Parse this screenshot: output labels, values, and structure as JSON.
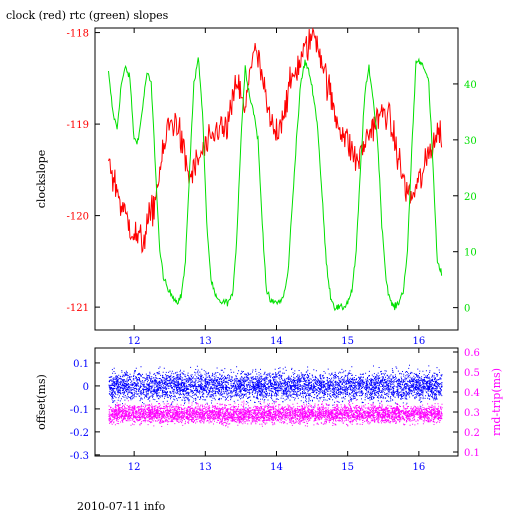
{
  "footer": "2010-07-11 info",
  "colors": {
    "red": "#ff0000",
    "green": "#00e000",
    "blue": "#0000ff",
    "magenta": "#ff00ff",
    "frame": "#000000",
    "background": "#ffffff"
  },
  "chart_data": [
    {
      "type": "line",
      "title": "clock (red) rtc (green) slopes",
      "xlabel": "",
      "ylabel": "clockslope",
      "y2label": "",
      "xlim": [
        11.45,
        16.55
      ],
      "ylim": [
        -121.25,
        -117.95
      ],
      "y2lim": [
        -4.0,
        50.0
      ],
      "x_ticks": [
        12,
        13,
        14,
        15,
        16
      ],
      "y_ticks": [
        -118,
        -119,
        -120,
        -121
      ],
      "y2_ticks": [
        0,
        10,
        20,
        30,
        40
      ],
      "series": [
        {
          "axis": "left",
          "color": "#ff0000",
          "x": [
            11.64,
            11.7,
            11.76,
            11.82,
            11.88,
            11.94,
            12.0,
            12.06,
            12.12,
            12.18,
            12.24,
            12.3,
            12.36,
            12.42,
            12.48,
            12.55,
            12.6,
            12.66,
            12.72,
            12.78,
            12.84,
            12.9,
            12.96,
            13.02,
            13.08,
            13.14,
            13.2,
            13.26,
            13.32,
            13.38,
            13.44,
            13.5,
            13.56,
            13.62,
            13.68,
            13.74,
            13.8,
            13.86,
            13.92,
            13.98,
            14.04,
            14.1,
            14.16,
            14.22,
            14.28,
            14.34,
            14.4,
            14.46,
            14.52,
            14.58,
            14.64,
            14.7,
            14.76,
            14.82,
            14.88,
            14.94,
            15.0,
            15.06,
            15.12,
            15.18,
            15.24,
            15.3,
            15.36,
            15.42,
            15.48,
            15.54,
            15.6,
            15.66,
            15.72,
            15.78,
            15.84,
            15.9,
            15.96,
            16.02,
            16.08,
            16.14,
            16.2,
            16.26,
            16.32
          ],
          "values": [
            -119.3,
            -119.6,
            -119.7,
            -119.9,
            -120.0,
            -120.1,
            -120.2,
            -120.25,
            -120.3,
            -120.1,
            -120.0,
            -119.8,
            -119.5,
            -119.3,
            -119.0,
            -119.0,
            -118.95,
            -119.2,
            -119.4,
            -119.6,
            -119.5,
            -119.4,
            -119.3,
            -119.25,
            -119.2,
            -119.1,
            -119.0,
            -119.1,
            -119.0,
            -118.8,
            -118.5,
            -118.7,
            -118.9,
            -118.4,
            -118.2,
            -118.3,
            -118.5,
            -118.8,
            -119.0,
            -119.1,
            -119.0,
            -118.85,
            -118.7,
            -118.5,
            -118.4,
            -118.3,
            -118.2,
            -118.1,
            -118.0,
            -118.1,
            -118.3,
            -118.5,
            -118.7,
            -118.9,
            -119.0,
            -119.1,
            -119.2,
            -119.3,
            -119.4,
            -119.35,
            -119.2,
            -119.1,
            -119.0,
            -118.95,
            -118.9,
            -118.85,
            -119.0,
            -119.2,
            -119.4,
            -119.6,
            -119.75,
            -119.8,
            -119.7,
            -119.6,
            -119.5,
            -119.3,
            -119.2,
            -119.1,
            -119.1
          ]
        },
        {
          "axis": "right",
          "color": "#00e000",
          "x": [
            11.64,
            11.7,
            11.76,
            11.82,
            11.88,
            11.94,
            12.0,
            12.06,
            12.12,
            12.18,
            12.24,
            12.3,
            12.36,
            12.42,
            12.48,
            12.55,
            12.6,
            12.66,
            12.72,
            12.78,
            12.84,
            12.9,
            12.96,
            13.02,
            13.08,
            13.14,
            13.2,
            13.26,
            13.32,
            13.38,
            13.44,
            13.5,
            13.56,
            13.62,
            13.68,
            13.74,
            13.8,
            13.86,
            13.92,
            13.98,
            14.04,
            14.1,
            14.16,
            14.22,
            14.28,
            14.34,
            14.4,
            14.46,
            14.52,
            14.58,
            14.64,
            14.7,
            14.76,
            14.82,
            14.88,
            14.94,
            15.0,
            15.06,
            15.12,
            15.18,
            15.24,
            15.3,
            15.36,
            15.42,
            15.48,
            15.54,
            15.6,
            15.66,
            15.72,
            15.78,
            15.84,
            15.9,
            15.96,
            16.02,
            16.08,
            16.14,
            16.2,
            16.26,
            16.32
          ],
          "values": [
            42,
            35,
            32,
            40,
            43,
            41,
            30,
            30,
            36,
            42,
            40,
            25,
            10,
            5,
            3,
            2,
            1,
            2,
            8,
            25,
            40,
            45,
            35,
            15,
            5,
            2,
            1,
            1,
            1,
            2,
            12,
            30,
            43,
            38,
            35,
            30,
            15,
            3,
            1,
            1,
            1,
            2,
            6,
            18,
            30,
            40,
            44,
            42,
            38,
            32,
            20,
            8,
            2,
            0,
            0,
            0,
            1,
            3,
            10,
            25,
            38,
            43,
            37,
            30,
            15,
            5,
            1,
            0,
            1,
            3,
            10,
            28,
            44,
            44,
            43,
            40,
            25,
            8,
            6
          ]
        }
      ]
    },
    {
      "type": "scatter",
      "title": "",
      "xlabel": "",
      "ylabel": "offset(ms)",
      "y2label": "rnd-trip(ms)",
      "xlim": [
        11.45,
        16.55
      ],
      "ylim": [
        -0.305,
        0.165
      ],
      "y2lim": [
        0.08,
        0.62
      ],
      "x_ticks": [
        12,
        13,
        14,
        15,
        16
      ],
      "y_ticks": [
        0.1,
        0,
        -0.1,
        -0.2,
        -0.3
      ],
      "y_tick_labels": [
        "0.1",
        "0",
        "-0.1",
        "-0.2",
        "-0.3"
      ],
      "y2_ticks": [
        0.1,
        0.2,
        0.3,
        0.4,
        0.5,
        0.6
      ],
      "series": [
        {
          "axis": "left",
          "color": "#0000ff",
          "x_range": [
            11.64,
            16.32
          ],
          "center": 0.0,
          "spread": 0.06
        },
        {
          "axis": "right",
          "color": "#ff00ff",
          "x_range": [
            11.64,
            16.32
          ],
          "center": 0.29,
          "spread": 0.045
        }
      ]
    }
  ]
}
